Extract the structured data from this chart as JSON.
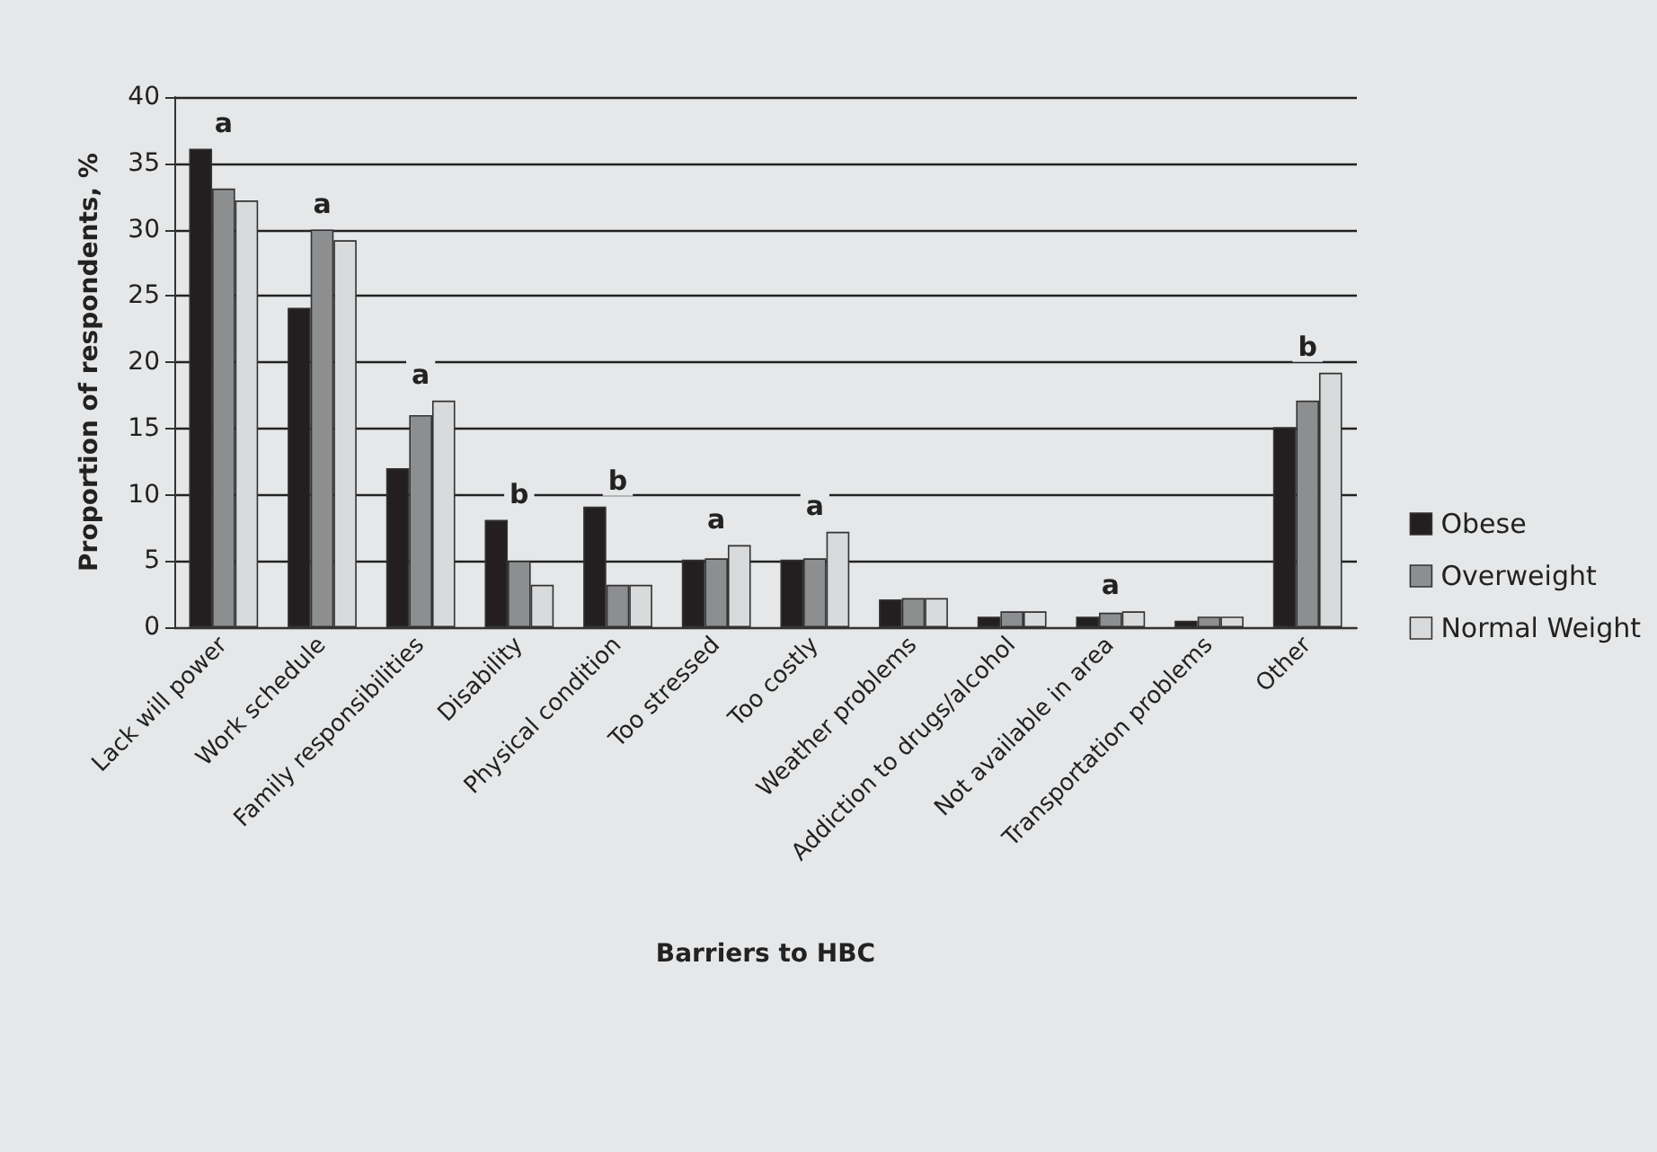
{
  "chart_data": {
    "type": "bar",
    "xlabel": "Barriers to HBC",
    "ylabel": "Proportion of respondents, %",
    "categories": [
      "Lack will power",
      "Work schedule",
      "Family responsibilities",
      "Disability",
      "Physical condition",
      "Too stressed",
      "Too costly",
      "Weather problems",
      "Addiction to drugs/alcohol",
      "Not available in area",
      "Transportation problems",
      "Other"
    ],
    "series": [
      {
        "name": "Obese",
        "color": "#231f20",
        "values": [
          36.1,
          24.1,
          12,
          8.1,
          9.1,
          5.1,
          5.1,
          2.1,
          0.8,
          0.8,
          0.5,
          15.1
        ]
      },
      {
        "name": "Overweight",
        "color": "#8d8e90",
        "values": [
          33.1,
          30,
          16,
          5,
          3.2,
          5.2,
          5.2,
          2.2,
          1.2,
          1.1,
          0.8,
          17.1
        ]
      },
      {
        "name": "Normal Weight",
        "color": "#d9dadb",
        "values": [
          32.2,
          29.2,
          17.1,
          3.2,
          3.2,
          6.2,
          7.2,
          2.2,
          1.2,
          1.2,
          0.8,
          19.2
        ]
      }
    ],
    "ylim": [
      0,
      40
    ],
    "yticks": [
      0,
      5,
      10,
      15,
      20,
      25,
      30,
      35,
      40
    ],
    "grid": "y",
    "legend": "right",
    "annotations": [
      {
        "text": "a",
        "x": "Lack will power"
      },
      {
        "text": "a",
        "x": "Work schedule"
      },
      {
        "text": "a",
        "x": "Family responsibilities"
      },
      {
        "text": "b",
        "x": "Disability"
      },
      {
        "text": "b",
        "x": "Physical condition"
      },
      {
        "text": "a",
        "x": "Too stressed"
      },
      {
        "text": "a",
        "x": "Too costly"
      },
      {
        "text": "a",
        "x": "Not available in area"
      },
      {
        "text": "b",
        "x": "Other"
      }
    ]
  }
}
